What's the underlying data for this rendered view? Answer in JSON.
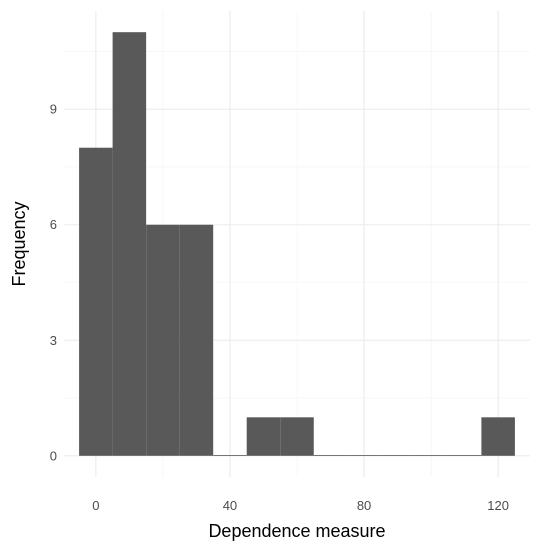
{
  "chart_data": {
    "type": "bar",
    "subtype": "histogram",
    "title": "",
    "xlabel": "Dependence measure",
    "ylabel": "Frequency",
    "bin_width": 10,
    "bins": [
      {
        "x0": -5,
        "x1": 5,
        "count": 8
      },
      {
        "x0": 5,
        "x1": 15,
        "count": 11
      },
      {
        "x0": 15,
        "x1": 25,
        "count": 6
      },
      {
        "x0": 25,
        "x1": 35,
        "count": 6
      },
      {
        "x0": 35,
        "x1": 45,
        "count": 0
      },
      {
        "x0": 45,
        "x1": 55,
        "count": 1
      },
      {
        "x0": 55,
        "x1": 65,
        "count": 1
      },
      {
        "x0": 65,
        "x1": 75,
        "count": 0
      },
      {
        "x0": 75,
        "x1": 85,
        "count": 0
      },
      {
        "x0": 85,
        "x1": 95,
        "count": 0
      },
      {
        "x0": 95,
        "x1": 105,
        "count": 0
      },
      {
        "x0": 105,
        "x1": 115,
        "count": 0
      },
      {
        "x0": 115,
        "x1": 125,
        "count": 1
      }
    ],
    "xlim": [
      -9.5,
      129.5
    ],
    "ylim": [
      -0.55,
      11.55
    ],
    "x_ticks": [
      0,
      40,
      80,
      120
    ],
    "y_ticks": [
      0,
      3,
      6,
      9
    ],
    "x_minor_ticks": [
      20,
      60,
      100
    ],
    "y_minor_ticks": [
      1.5,
      4.5,
      7.5,
      10.5
    ],
    "grid": true,
    "bar_color": "#595959",
    "background": "#ffffff"
  }
}
